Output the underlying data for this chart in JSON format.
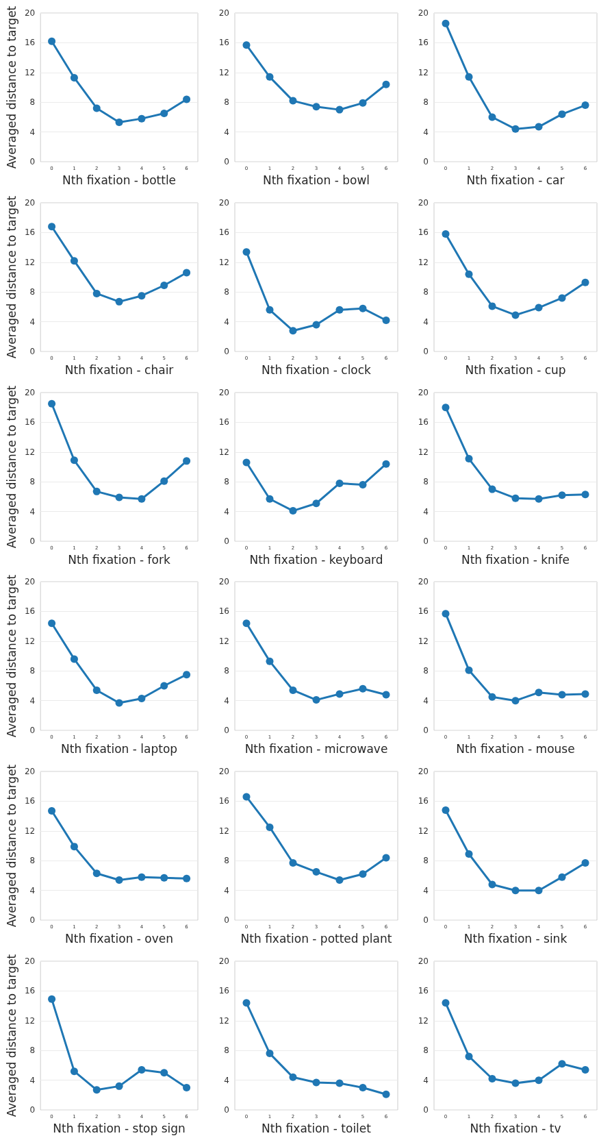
{
  "chart_data": [
    {
      "type": "line",
      "xlabel": "Nth fixation - bottle",
      "ylabel": "Averaged distance to target",
      "categories": [
        "0",
        "1",
        "2",
        "3",
        "4",
        "5",
        "6"
      ],
      "values": [
        16.2,
        11.3,
        7.2,
        5.3,
        5.8,
        6.5,
        8.4
      ],
      "color": "#1f77b4",
      "ylim": [
        0,
        20
      ],
      "yticks": [
        0,
        4,
        8,
        12,
        16,
        20
      ],
      "grid": "y",
      "marker": "circle"
    },
    {
      "type": "line",
      "xlabel": "Nth fixation - bowl",
      "categories": [
        "0",
        "1",
        "2",
        "3",
        "4",
        "5",
        "6"
      ],
      "values": [
        15.7,
        11.4,
        8.2,
        7.4,
        7.0,
        7.9,
        10.4
      ],
      "color": "#1f77b4",
      "ylim": [
        0,
        20
      ],
      "yticks": [
        0,
        4,
        8,
        12,
        16,
        20
      ],
      "grid": "y",
      "marker": "circle"
    },
    {
      "type": "line",
      "xlabel": "Nth fixation - car",
      "categories": [
        "0",
        "1",
        "2",
        "3",
        "4",
        "5",
        "6"
      ],
      "values": [
        18.6,
        11.4,
        6.0,
        4.4,
        4.7,
        6.4,
        7.6
      ],
      "color": "#1f77b4",
      "ylim": [
        0,
        20
      ],
      "yticks": [
        0,
        4,
        8,
        12,
        16,
        20
      ],
      "grid": "y",
      "marker": "circle"
    },
    {
      "type": "line",
      "xlabel": "Nth fixation - chair",
      "ylabel": "Averaged distance to target",
      "categories": [
        "0",
        "1",
        "2",
        "3",
        "4",
        "5",
        "6"
      ],
      "values": [
        16.8,
        12.2,
        7.8,
        6.7,
        7.5,
        8.9,
        10.6
      ],
      "color": "#1f77b4",
      "ylim": [
        0,
        20
      ],
      "yticks": [
        0,
        4,
        8,
        12,
        16,
        20
      ],
      "grid": "y",
      "marker": "circle"
    },
    {
      "type": "line",
      "xlabel": "Nth fixation - clock",
      "categories": [
        "0",
        "1",
        "2",
        "3",
        "4",
        "5",
        "6"
      ],
      "values": [
        13.4,
        5.6,
        2.8,
        3.6,
        5.6,
        5.8,
        4.2
      ],
      "color": "#1f77b4",
      "ylim": [
        0,
        20
      ],
      "yticks": [
        0,
        4,
        8,
        12,
        16,
        20
      ],
      "grid": "y",
      "marker": "circle"
    },
    {
      "type": "line",
      "xlabel": "Nth fixation - cup",
      "categories": [
        "0",
        "1",
        "2",
        "3",
        "4",
        "5",
        "6"
      ],
      "values": [
        15.8,
        10.4,
        6.1,
        4.9,
        5.9,
        7.2,
        9.3
      ],
      "color": "#1f77b4",
      "ylim": [
        0,
        20
      ],
      "yticks": [
        0,
        4,
        8,
        12,
        16,
        20
      ],
      "grid": "y",
      "marker": "circle"
    },
    {
      "type": "line",
      "xlabel": "Nth fixation - fork",
      "ylabel": "Averaged distance to target",
      "categories": [
        "0",
        "1",
        "2",
        "3",
        "4",
        "5",
        "6"
      ],
      "values": [
        18.5,
        10.9,
        6.7,
        5.9,
        5.7,
        8.1,
        10.8
      ],
      "color": "#1f77b4",
      "ylim": [
        0,
        20
      ],
      "yticks": [
        0,
        4,
        8,
        12,
        16,
        20
      ],
      "grid": "y",
      "marker": "circle"
    },
    {
      "type": "line",
      "xlabel": "Nth fixation - keyboard",
      "categories": [
        "0",
        "1",
        "2",
        "3",
        "4",
        "5",
        "6"
      ],
      "values": [
        10.6,
        5.7,
        4.1,
        5.1,
        7.8,
        7.6,
        10.4
      ],
      "color": "#1f77b4",
      "ylim": [
        0,
        20
      ],
      "yticks": [
        0,
        4,
        8,
        12,
        16,
        20
      ],
      "grid": "y",
      "marker": "circle"
    },
    {
      "type": "line",
      "xlabel": "Nth fixation - knife",
      "categories": [
        "0",
        "1",
        "2",
        "3",
        "4",
        "5",
        "6"
      ],
      "values": [
        18.0,
        11.1,
        7.0,
        5.8,
        5.7,
        6.2,
        6.3
      ],
      "color": "#1f77b4",
      "ylim": [
        0,
        20
      ],
      "yticks": [
        0,
        4,
        8,
        12,
        16,
        20
      ],
      "grid": "y",
      "marker": "circle"
    },
    {
      "type": "line",
      "xlabel": "Nth fixation - laptop",
      "ylabel": "Averaged distance to target",
      "categories": [
        "0",
        "1",
        "2",
        "3",
        "4",
        "5",
        "6"
      ],
      "values": [
        14.4,
        9.6,
        5.4,
        3.7,
        4.3,
        6.0,
        7.5
      ],
      "color": "#1f77b4",
      "ylim": [
        0,
        20
      ],
      "yticks": [
        0,
        4,
        8,
        12,
        16,
        20
      ],
      "grid": "y",
      "marker": "circle"
    },
    {
      "type": "line",
      "xlabel": "Nth fixation - microwave",
      "categories": [
        "0",
        "1",
        "2",
        "3",
        "4",
        "5",
        "6"
      ],
      "values": [
        14.4,
        9.3,
        5.4,
        4.1,
        4.9,
        5.6,
        4.8
      ],
      "color": "#1f77b4",
      "ylim": [
        0,
        20
      ],
      "yticks": [
        0,
        4,
        8,
        12,
        16,
        20
      ],
      "grid": "y",
      "marker": "circle"
    },
    {
      "type": "line",
      "xlabel": "Nth fixation - mouse",
      "categories": [
        "0",
        "1",
        "2",
        "3",
        "4",
        "5",
        "6"
      ],
      "values": [
        15.7,
        8.1,
        4.5,
        4.0,
        5.1,
        4.8,
        4.9
      ],
      "color": "#1f77b4",
      "ylim": [
        0,
        20
      ],
      "yticks": [
        0,
        4,
        8,
        12,
        16,
        20
      ],
      "grid": "y",
      "marker": "circle"
    },
    {
      "type": "line",
      "xlabel": "Nth fixation - oven",
      "ylabel": "Averaged distance to target",
      "categories": [
        "0",
        "1",
        "2",
        "3",
        "4",
        "5",
        "6"
      ],
      "values": [
        14.7,
        9.9,
        6.3,
        5.4,
        5.8,
        5.7,
        5.6
      ],
      "color": "#1f77b4",
      "ylim": [
        0,
        20
      ],
      "yticks": [
        0,
        4,
        8,
        12,
        16,
        20
      ],
      "grid": "y",
      "marker": "circle"
    },
    {
      "type": "line",
      "xlabel": "Nth fixation - potted plant",
      "categories": [
        "0",
        "1",
        "2",
        "3",
        "4",
        "5",
        "6"
      ],
      "values": [
        16.6,
        12.5,
        7.7,
        6.5,
        5.4,
        6.2,
        8.4
      ],
      "color": "#1f77b4",
      "ylim": [
        0,
        20
      ],
      "yticks": [
        0,
        4,
        8,
        12,
        16,
        20
      ],
      "grid": "y",
      "marker": "circle"
    },
    {
      "type": "line",
      "xlabel": "Nth fixation - sink",
      "categories": [
        "0",
        "1",
        "2",
        "3",
        "4",
        "5",
        "6"
      ],
      "values": [
        14.8,
        8.9,
        4.8,
        4.0,
        4.0,
        5.8,
        7.7
      ],
      "color": "#1f77b4",
      "ylim": [
        0,
        20
      ],
      "yticks": [
        0,
        4,
        8,
        12,
        16,
        20
      ],
      "grid": "y",
      "marker": "circle"
    },
    {
      "type": "line",
      "xlabel": "Nth fixation - stop sign",
      "ylabel": "Averaged distance to target",
      "categories": [
        "0",
        "1",
        "2",
        "3",
        "4",
        "5",
        "6"
      ],
      "values": [
        14.9,
        5.2,
        2.7,
        3.2,
        5.4,
        5.0,
        3.0
      ],
      "color": "#1f77b4",
      "ylim": [
        0,
        20
      ],
      "yticks": [
        0,
        4,
        8,
        12,
        16,
        20
      ],
      "grid": "y",
      "marker": "circle"
    },
    {
      "type": "line",
      "xlabel": "Nth fixation - toilet",
      "categories": [
        "0",
        "1",
        "2",
        "3",
        "4",
        "5",
        "6"
      ],
      "values": [
        14.4,
        7.6,
        4.4,
        3.7,
        3.6,
        3.0,
        2.1
      ],
      "color": "#1f77b4",
      "ylim": [
        0,
        20
      ],
      "yticks": [
        0,
        4,
        8,
        12,
        16,
        20
      ],
      "grid": "y",
      "marker": "circle"
    },
    {
      "type": "line",
      "xlabel": "Nth fixation - tv",
      "categories": [
        "0",
        "1",
        "2",
        "3",
        "4",
        "5",
        "6"
      ],
      "values": [
        14.4,
        7.2,
        4.2,
        3.6,
        4.0,
        6.2,
        5.4
      ],
      "color": "#1f77b4",
      "ylim": [
        0,
        20
      ],
      "yticks": [
        0,
        4,
        8,
        12,
        16,
        20
      ],
      "grid": "y",
      "marker": "circle"
    }
  ]
}
